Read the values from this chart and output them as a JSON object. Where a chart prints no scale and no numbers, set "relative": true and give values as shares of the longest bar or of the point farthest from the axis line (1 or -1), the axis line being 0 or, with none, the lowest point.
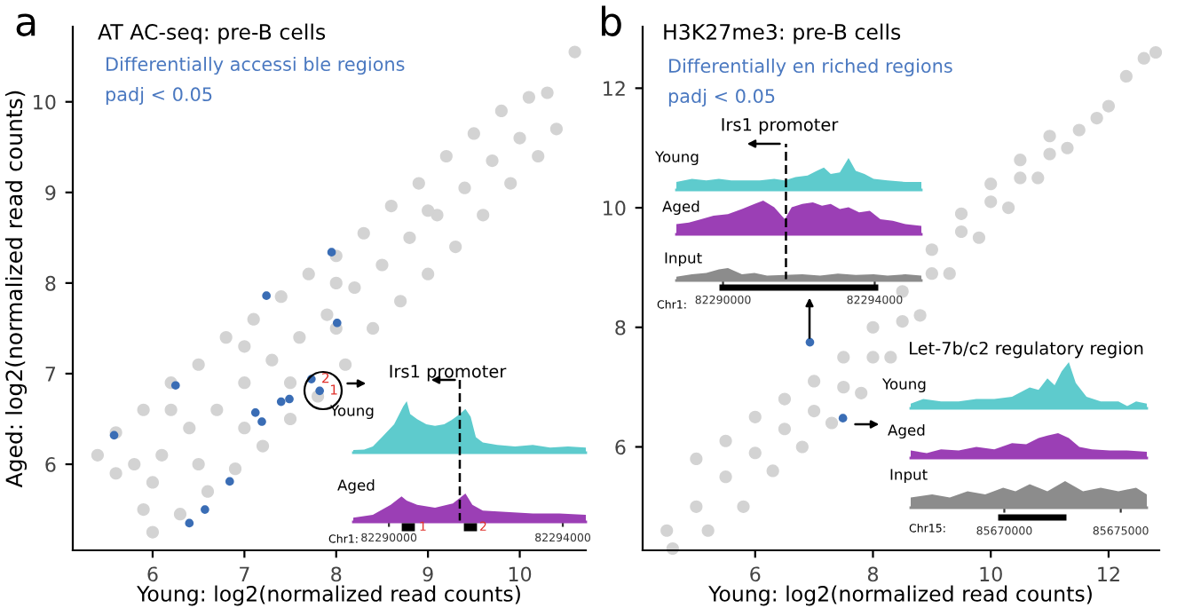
{
  "chart_data": [
    {
      "type": "scatter",
      "title": "AT AC-seq: pre-B cells",
      "xlabel": "Young: log2(normalized read counts)",
      "ylabel": "Aged: log2(normalized read counts)",
      "xlim": [
        5.13,
        10.72
      ],
      "ylim": [
        5.05,
        10.83
      ],
      "xticks": [
        6,
        7,
        8,
        9,
        10
      ],
      "yticks": [
        6,
        7,
        8,
        9,
        10
      ],
      "grid": false,
      "legend": false,
      "marker": "circle",
      "annotations": [
        "a",
        "Differentially accessi ble regions",
        "padj < 0.05",
        {
          "text": "2",
          "x": 7.73,
          "y": 6.94
        },
        {
          "text": "1",
          "x": 7.82,
          "y": 6.81
        }
      ],
      "series": [
        {
          "color": "#d3d3d3",
          "x": [
            5.4,
            5.6,
            5.9,
            6.2,
            6.5,
            6.8,
            7.1,
            7.4,
            7.7,
            8.0,
            8.3,
            8.6,
            8.9,
            9.2,
            9.5,
            9.8,
            10.1,
            10.3,
            10.6,
            5.6,
            5.9,
            6.0,
            6.3,
            6.6,
            6.9,
            7.2,
            7.5,
            7.8,
            8.1,
            8.4,
            8.7,
            9.0,
            9.3,
            9.6,
            9.9,
            10.2,
            10.4,
            5.8,
            6.1,
            6.4,
            6.7,
            7.0,
            7.3,
            7.6,
            7.9,
            8.2,
            8.5,
            8.8,
            9.1,
            9.4,
            9.7,
            10.0,
            6.0,
            6.5,
            7.0,
            7.5,
            8.0,
            6.2,
            7.0,
            8.0,
            9.0
          ],
          "values": [
            6.1,
            6.35,
            6.6,
            6.9,
            7.1,
            7.4,
            7.6,
            7.85,
            8.1,
            8.3,
            8.55,
            8.85,
            9.1,
            9.4,
            9.65,
            9.9,
            10.05,
            10.1,
            10.55,
            5.9,
            5.5,
            5.25,
            5.45,
            5.7,
            5.95,
            6.2,
            6.5,
            6.75,
            7.1,
            7.5,
            7.8,
            8.1,
            8.4,
            8.75,
            9.1,
            9.4,
            9.7,
            6.0,
            6.1,
            6.4,
            6.6,
            6.9,
            7.15,
            7.4,
            7.65,
            7.95,
            8.2,
            8.5,
            8.75,
            9.05,
            9.35,
            9.6,
            5.8,
            6.0,
            6.4,
            6.9,
            7.5,
            6.6,
            7.3,
            8.0,
            8.8
          ]
        },
        {
          "color": "#3a6db5",
          "x": [
            5.58,
            6.25,
            7.24,
            7.95,
            8.01,
            7.73,
            7.82,
            7.4,
            7.49,
            7.12,
            7.19,
            6.84,
            6.57,
            6.4
          ],
          "values": [
            6.32,
            6.87,
            7.86,
            8.34,
            7.56,
            6.94,
            6.81,
            6.69,
            6.72,
            6.57,
            6.47,
            5.81,
            5.5,
            5.35
          ]
        }
      ]
    },
    {
      "type": "area",
      "relative": true,
      "ylabel": "Young",
      "xlim": [
        82289180,
        82294530
      ],
      "tick_labels": false,
      "annotations": [
        "Irs1 promoter"
      ],
      "x": [
        82289180,
        82289430,
        82289630,
        82289840,
        82290120,
        82290330,
        82290410,
        82290490,
        82290650,
        82290860,
        82291060,
        82291270,
        82291470,
        82291630,
        82291760,
        82291880,
        82292000,
        82292160,
        82292490,
        82292900,
        82293310,
        82293710,
        82294120,
        82294530
      ],
      "series": [
        {
          "color": "#5ecbcd",
          "values": [
            0.05,
            0.06,
            0.12,
            0.3,
            0.55,
            0.9,
            1.0,
            0.75,
            0.65,
            0.55,
            0.52,
            0.55,
            0.65,
            0.75,
            0.85,
            0.7,
            0.3,
            0.2,
            0.15,
            0.12,
            0.15,
            0.1,
            0.12,
            0.1
          ]
        }
      ]
    },
    {
      "type": "area",
      "relative": true,
      "ylabel": "Aged",
      "xlim": [
        82289180,
        82294530
      ],
      "xticks": [
        82290000,
        82294000
      ],
      "tick_labels": "x",
      "annotations": [
        "1",
        "2",
        "Chr1:"
      ],
      "ref_lines": [
        {
          "axis": "x",
          "value": 82291630,
          "line_style": "dashed"
        }
      ],
      "x": [
        82289180,
        82289630,
        82290040,
        82290290,
        82290410,
        82290650,
        82291060,
        82291470,
        82291760,
        82291920,
        82292160,
        82292690,
        82293310,
        82293920,
        82294530
      ],
      "series": [
        {
          "color": "#9b3fb5",
          "values": [
            0.15,
            0.25,
            0.6,
            0.9,
            0.75,
            0.6,
            0.5,
            0.65,
            1.0,
            0.6,
            0.4,
            0.35,
            0.3,
            0.3,
            0.25
          ]
        }
      ]
    },
    {
      "type": "scatter",
      "title": "H3K27me3: pre-B cells",
      "xlabel": "Young: log2(normalized read counts)",
      "xlim": [
        4.09,
        12.86
      ],
      "ylim": [
        4.27,
        13.03
      ],
      "xticks": [
        6,
        8,
        10,
        12
      ],
      "yticks": [
        6,
        8,
        10,
        12
      ],
      "grid": false,
      "legend": false,
      "marker": "circle",
      "annotations": [
        "b",
        "Differentially en riched regions",
        "padj < 0.05"
      ],
      "series": [
        {
          "color": "#d3d3d3",
          "x": [
            4.5,
            5.0,
            5.5,
            6.0,
            6.5,
            7.0,
            7.5,
            8.0,
            8.5,
            9.0,
            9.5,
            10.0,
            10.5,
            11.0,
            11.5,
            12.0,
            12.6,
            12.8,
            5.0,
            5.5,
            6.0,
            6.5,
            7.0,
            7.5,
            8.0,
            8.5,
            9.0,
            9.5,
            10.0,
            10.5,
            11.0,
            12.3,
            4.6,
            5.2,
            5.8,
            6.3,
            6.8,
            7.3,
            7.8,
            8.3,
            8.8,
            9.3,
            9.8,
            10.3,
            10.8,
            11.3,
            11.8
          ],
          "values": [
            4.6,
            5.0,
            5.5,
            5.9,
            6.3,
            6.6,
            7.0,
            7.5,
            8.1,
            8.9,
            9.6,
            10.1,
            10.5,
            10.9,
            11.3,
            11.7,
            12.5,
            12.6,
            5.8,
            6.1,
            6.5,
            6.8,
            7.1,
            7.5,
            8.0,
            8.6,
            9.3,
            9.9,
            10.4,
            10.8,
            11.2,
            12.2,
            4.3,
            4.6,
            5.0,
            5.6,
            6.0,
            6.4,
            6.9,
            7.5,
            8.2,
            8.9,
            9.5,
            10.0,
            10.5,
            11.0,
            11.5
          ]
        },
        {
          "color": "#3a6db5",
          "x": [
            6.93,
            7.49
          ],
          "values": [
            7.75,
            6.48
          ]
        }
      ]
    },
    {
      "type": "area",
      "relative": true,
      "ylabel": "Young",
      "xlim": [
        82288770,
        82295230
      ],
      "tick_labels": false,
      "annotations": [
        "Irs1 promoter"
      ],
      "x": [
        82288770,
        82289180,
        82289560,
        82289890,
        82290220,
        82290590,
        82290970,
        82291350,
        82291630,
        82291910,
        82292230,
        82292470,
        82292660,
        82292840,
        82293080,
        82293310,
        82293500,
        82293730,
        82293970,
        82294340,
        82294810,
        82295230
      ],
      "series": [
        {
          "color": "#5ecbcd",
          "values": [
            0.25,
            0.35,
            0.3,
            0.35,
            0.3,
            0.3,
            0.3,
            0.35,
            0.3,
            0.4,
            0.45,
            0.6,
            0.7,
            0.5,
            0.55,
            1.0,
            0.6,
            0.5,
            0.35,
            0.3,
            0.25,
            0.25
          ]
        }
      ]
    },
    {
      "type": "area",
      "relative": true,
      "ylabel": "Aged",
      "xlim": [
        82288770,
        82295230
      ],
      "tick_labels": false,
      "x": [
        82288770,
        82289100,
        82289420,
        82289750,
        82290130,
        82290500,
        82290830,
        82291060,
        82291350,
        82291630,
        82291810,
        82292090,
        82292370,
        82292610,
        82292840,
        82293080,
        82293310,
        82293590,
        82293870,
        82294150,
        82294480,
        82294810,
        82295230
      ],
      "series": [
        {
          "color": "#9b3fb5",
          "values": [
            0.3,
            0.35,
            0.45,
            0.55,
            0.6,
            0.75,
            0.9,
            1.0,
            0.8,
            0.45,
            0.8,
            0.9,
            0.95,
            0.85,
            0.9,
            0.75,
            0.8,
            0.65,
            0.7,
            0.45,
            0.4,
            0.3,
            0.25
          ]
        }
      ]
    },
    {
      "type": "area",
      "relative": true,
      "ylabel": "Input",
      "xlim": [
        82288770,
        82295230
      ],
      "xticks": [
        82290000,
        82294000
      ],
      "tick_labels": "x",
      "annotations": [
        "Chr1:"
      ],
      "ref_lines": [
        {
          "axis": "x",
          "value": 82291660,
          "line_style": "dashed"
        }
      ],
      "x": [
        82288770,
        82289180,
        82289560,
        82289890,
        82290130,
        82290500,
        82290830,
        82291160,
        82291630,
        82292090,
        82292560,
        82293030,
        82293500,
        82293970,
        82294340,
        82294810,
        82295230
      ],
      "series": [
        {
          "color": "#8c8c8c",
          "values": [
            0.3,
            0.5,
            0.6,
            0.9,
            1.0,
            0.5,
            0.6,
            0.4,
            0.45,
            0.5,
            0.4,
            0.55,
            0.45,
            0.5,
            0.4,
            0.5,
            0.4
          ]
        }
      ]
    },
    {
      "type": "area",
      "relative": true,
      "ylabel": "Young",
      "xlim": [
        85665980,
        85676120
      ],
      "tick_labels": false,
      "annotations": [
        "Let-7b/c2 regulatory region"
      ],
      "x": [
        85665980,
        85666520,
        85667280,
        85668040,
        85668800,
        85669570,
        85670330,
        85670710,
        85671090,
        85671470,
        85671850,
        85672160,
        85672460,
        85672770,
        85673070,
        85673530,
        85674140,
        85674900,
        85675280,
        85675660,
        85676120
      ],
      "series": [
        {
          "color": "#5ecbcd",
          "values": [
            0.1,
            0.2,
            0.15,
            0.15,
            0.2,
            0.2,
            0.25,
            0.35,
            0.45,
            0.4,
            0.65,
            0.5,
            0.8,
            1.0,
            0.55,
            0.25,
            0.15,
            0.15,
            0.05,
            0.15,
            0.1
          ]
        }
      ]
    },
    {
      "type": "area",
      "relative": true,
      "ylabel": "Aged",
      "xlim": [
        85665980,
        85676120
      ],
      "tick_labels": false,
      "x": [
        85665980,
        85666670,
        85667280,
        85668040,
        85668800,
        85669570,
        85670330,
        85670940,
        85671470,
        85671850,
        85672310,
        85672770,
        85673220,
        85673760,
        85674520,
        85675280,
        85676120
      ],
      "series": [
        {
          "color": "#9b3fb5",
          "values": [
            0.3,
            0.2,
            0.35,
            0.3,
            0.45,
            0.35,
            0.6,
            0.55,
            0.8,
            0.9,
            1.0,
            0.8,
            0.45,
            0.35,
            0.3,
            0.3,
            0.25
          ]
        }
      ]
    },
    {
      "type": "area",
      "relative": true,
      "ylabel": "Input",
      "xlim": [
        85665980,
        85676120
      ],
      "xticks": [
        85670000,
        85675000
      ],
      "tick_labels": "x",
      "annotations": [
        "Chr15:"
      ],
      "x": [
        85665980,
        85666900,
        85667660,
        85668420,
        85669180,
        85669950,
        85670480,
        85671090,
        85671850,
        85672610,
        85673380,
        85674140,
        85674900,
        85675660,
        85676120
      ],
      "series": [
        {
          "color": "#8c8c8c",
          "values": [
            0.38,
            0.5,
            0.38,
            0.62,
            0.5,
            0.75,
            0.62,
            0.88,
            0.62,
            1.0,
            0.62,
            0.75,
            0.62,
            0.75,
            0.5
          ]
        }
      ]
    }
  ]
}
